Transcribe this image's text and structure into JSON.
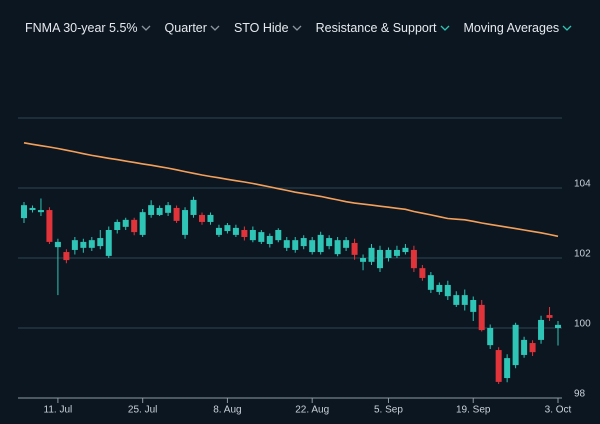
{
  "menu": [
    {
      "label": "FNMA 30-year 5.5%",
      "chevron": "#8b96a0"
    },
    {
      "label": "Quarter",
      "chevron": "#8b96a0"
    },
    {
      "label": "STO Hide",
      "chevron": "#8b96a0"
    },
    {
      "label": "Resistance & Support",
      "chevron": "#2ec4b6"
    },
    {
      "label": "Moving Averages",
      "chevron": "#2ec4b6"
    }
  ],
  "chart_data": {
    "type": "candlestick",
    "categories": [
      null,
      null,
      null,
      null,
      "11. Jul",
      null,
      null,
      null,
      null,
      null,
      null,
      null,
      null,
      null,
      "25. Jul",
      null,
      null,
      null,
      null,
      null,
      null,
      null,
      null,
      null,
      "8. Aug",
      null,
      null,
      null,
      null,
      null,
      null,
      null,
      null,
      null,
      "22. Aug",
      null,
      null,
      null,
      null,
      null,
      null,
      null,
      null,
      "5. Sep",
      null,
      null,
      null,
      null,
      null,
      null,
      null,
      null,
      null,
      "19. Sep",
      null,
      null,
      null,
      null,
      null,
      null,
      null,
      null,
      null,
      "3. Oct"
    ],
    "open": [
      103.14,
      103.37,
      103.31,
      103.37,
      102.31,
      102.17,
      102.23,
      102.29,
      102.29,
      102.34,
      102.06,
      102.8,
      102.89,
      103.09,
      102.66,
      103.23,
      103.23,
      103.29,
      103.43,
      102.66,
      103.23,
      103.23,
      103.03,
      102.66,
      102.77,
      102.66,
      102.8,
      102.51,
      102.46,
      102.4,
      102.51,
      102.29,
      102.23,
      102.34,
      102.17,
      102.17,
      102.34,
      102.11,
      102.29,
      102.43,
      101.89,
      101.89,
      101.71,
      102.0,
      102.06,
      102.17,
      102.23,
      101.71,
      101.09,
      101.03,
      100.91,
      100.66,
      100.66,
      100.46,
      100.66,
      99.51,
      99.37,
      98.57,
      98.94,
      99.23,
      99.57,
      99.66,
      100.37,
      100.0
    ],
    "high": [
      103.6,
      103.5,
      103.7,
      103.45,
      102.55,
      102.25,
      102.6,
      102.55,
      102.6,
      102.8,
      102.9,
      103.1,
      103.15,
      103.15,
      103.4,
      103.65,
      103.5,
      103.6,
      103.5,
      103.45,
      103.75,
      103.3,
      103.3,
      102.95,
      103.0,
      102.95,
      102.9,
      102.9,
      102.8,
      102.7,
      102.85,
      102.6,
      102.6,
      102.65,
      102.6,
      102.75,
      102.65,
      102.6,
      102.6,
      102.55,
      102.1,
      102.4,
      102.35,
      102.3,
      102.35,
      102.4,
      102.35,
      101.8,
      101.6,
      101.3,
      101.35,
      101.05,
      101.1,
      100.9,
      100.8,
      100.1,
      99.45,
      99.25,
      100.15,
      99.75,
      99.65,
      100.35,
      100.6,
      100.2
    ],
    "low": [
      103.0,
      103.3,
      103.2,
      102.4,
      100.94,
      101.85,
      102.1,
      102.15,
      102.2,
      102.25,
      102.0,
      102.7,
      102.8,
      102.65,
      102.6,
      103.15,
      103.2,
      103.2,
      103.0,
      102.55,
      103.15,
      102.95,
      102.95,
      102.6,
      102.7,
      102.6,
      102.5,
      102.45,
      102.4,
      102.3,
      102.45,
      102.2,
      102.15,
      102.25,
      102.1,
      102.1,
      102.25,
      102.05,
      102.2,
      101.95,
      101.65,
      101.8,
      101.6,
      101.9,
      102.0,
      102.1,
      101.6,
      101.35,
      101.0,
      100.95,
      100.8,
      100.6,
      100.5,
      100.2,
      99.9,
      99.4,
      98.4,
      98.45,
      98.85,
      99.15,
      99.2,
      99.55,
      100.2,
      99.5
    ],
    "close": [
      103.51,
      103.43,
      103.37,
      102.46,
      102.46,
      101.94,
      102.51,
      102.46,
      102.51,
      102.57,
      102.8,
      103.03,
      103.09,
      102.74,
      103.31,
      103.51,
      103.43,
      103.51,
      103.06,
      103.37,
      103.66,
      103.03,
      103.23,
      102.86,
      102.94,
      102.86,
      102.6,
      102.8,
      102.74,
      102.63,
      102.8,
      102.51,
      102.51,
      102.57,
      102.51,
      102.66,
      102.57,
      102.51,
      102.51,
      102.09,
      102.0,
      102.29,
      102.23,
      102.23,
      102.23,
      102.29,
      101.71,
      101.43,
      101.51,
      101.23,
      101.23,
      100.94,
      100.94,
      100.8,
      99.94,
      100.0,
      98.46,
      99.14,
      100.09,
      99.66,
      99.31,
      100.23,
      100.29,
      100.09
    ],
    "up_color": "#2ec4b6",
    "down_color": "#e0343a",
    "moving_average": {
      "color": "#f5a05a",
      "values": [
        105.29,
        105.25,
        105.21,
        105.17,
        105.13,
        105.08,
        105.03,
        104.98,
        104.93,
        104.89,
        104.85,
        104.81,
        104.77,
        104.73,
        104.69,
        104.65,
        104.61,
        104.57,
        104.52,
        104.47,
        104.42,
        104.37,
        104.33,
        104.29,
        104.25,
        104.21,
        104.17,
        104.13,
        104.08,
        104.03,
        103.98,
        103.93,
        103.88,
        103.84,
        103.8,
        103.76,
        103.71,
        103.66,
        103.61,
        103.57,
        103.54,
        103.51,
        103.48,
        103.45,
        103.42,
        103.39,
        103.33,
        103.28,
        103.23,
        103.18,
        103.13,
        103.11,
        103.09,
        103.05,
        103.0,
        102.96,
        102.92,
        102.88,
        102.84,
        102.8,
        102.76,
        102.72,
        102.67,
        102.62
      ]
    },
    "ylim": [
      98,
      106
    ],
    "yticks": [
      98,
      100,
      102,
      104
    ],
    "grid": true
  }
}
